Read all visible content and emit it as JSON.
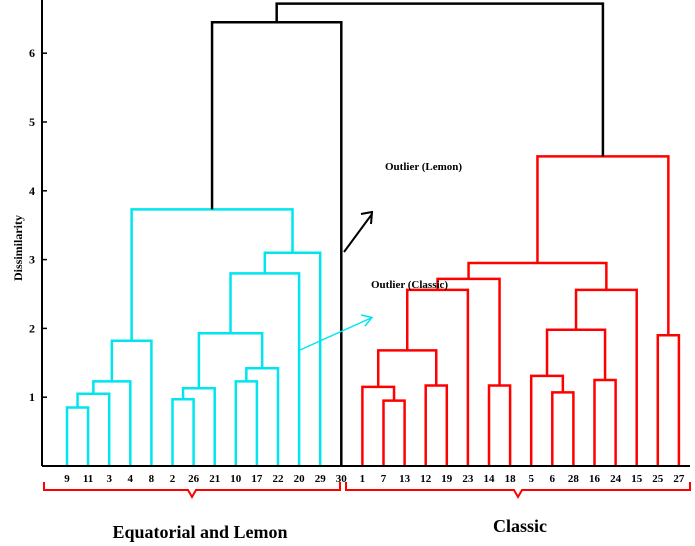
{
  "chart_data": {
    "type": "dendrogram",
    "ylabel": "Dissimilarity",
    "ylim": [
      0,
      7
    ],
    "yticks": [
      1,
      2,
      3,
      4,
      5,
      6,
      7
    ],
    "leaves": [
      "9",
      "11",
      "3",
      "4",
      "8",
      "2",
      "26",
      "21",
      "10",
      "17",
      "22",
      "20",
      "29",
      "30",
      "1",
      "7",
      "13",
      "12",
      "19",
      "23",
      "14",
      "18",
      "5",
      "6",
      "28",
      "16",
      "24",
      "15",
      "25",
      "27"
    ],
    "merges": [
      {
        "a": "L:9",
        "b": "L:11",
        "h": 0.85,
        "color": "#00e5ee"
      },
      {
        "a": "M:1",
        "b": "L:3",
        "h": 1.05,
        "color": "#00e5ee"
      },
      {
        "a": "M:2",
        "b": "L:4",
        "h": 1.23,
        "color": "#00e5ee"
      },
      {
        "a": "M:3",
        "b": "L:8",
        "h": 1.82,
        "color": "#00e5ee"
      },
      {
        "a": "L:2",
        "b": "L:26",
        "h": 0.97,
        "color": "#00e5ee"
      },
      {
        "a": "M:5",
        "b": "L:21",
        "h": 1.13,
        "color": "#00e5ee"
      },
      {
        "a": "L:10",
        "b": "L:17",
        "h": 1.23,
        "color": "#00e5ee"
      },
      {
        "a": "M:7",
        "b": "L:22",
        "h": 1.42,
        "color": "#00e5ee"
      },
      {
        "a": "M:6",
        "b": "M:8",
        "h": 1.93,
        "color": "#00e5ee"
      },
      {
        "a": "M:9",
        "b": "L:20",
        "h": 2.8,
        "color": "#00e5ee"
      },
      {
        "a": "M:10",
        "b": "L:29",
        "h": 3.1,
        "color": "#00e5ee"
      },
      {
        "a": "M:4",
        "b": "M:11",
        "h": 3.73,
        "color": "#00e5ee"
      },
      {
        "a": "M:12",
        "b": "L:30",
        "h": 6.45,
        "color": "#000000"
      },
      {
        "a": "L:7",
        "b": "L:13",
        "h": 0.95,
        "color": "#ff0000"
      },
      {
        "a": "L:1",
        "b": "M:14",
        "h": 1.15,
        "color": "#ff0000"
      },
      {
        "a": "L:12",
        "b": "L:19",
        "h": 1.17,
        "color": "#ff0000"
      },
      {
        "a": "M:15",
        "b": "M:16",
        "h": 1.68,
        "color": "#ff0000"
      },
      {
        "a": "M:17",
        "b": "L:23",
        "h": 2.56,
        "color": "#ff0000"
      },
      {
        "a": "L:14",
        "b": "L:18",
        "h": 1.17,
        "color": "#ff0000"
      },
      {
        "a": "M:18",
        "b": "M:19",
        "h": 2.72,
        "color": "#ff0000"
      },
      {
        "a": "L:6",
        "b": "L:28",
        "h": 1.07,
        "color": "#ff0000"
      },
      {
        "a": "L:5",
        "b": "M:21",
        "h": 1.31,
        "color": "#ff0000"
      },
      {
        "a": "L:16",
        "b": "L:24",
        "h": 1.25,
        "color": "#ff0000"
      },
      {
        "a": "M:22",
        "b": "M:23",
        "h": 1.98,
        "color": "#ff0000"
      },
      {
        "a": "M:24",
        "b": "L:15",
        "h": 2.56,
        "color": "#ff0000"
      },
      {
        "a": "M:20",
        "b": "M:25",
        "h": 2.95,
        "color": "#ff0000"
      },
      {
        "a": "L:25",
        "b": "L:27",
        "h": 1.9,
        "color": "#ff0000"
      },
      {
        "a": "M:26",
        "b": "M:27",
        "h": 4.5,
        "color": "#ff0000"
      },
      {
        "a": "M:13",
        "b": "M:28",
        "h": 6.72,
        "color": "#000000"
      }
    ],
    "annotations": [
      {
        "text": "Outlier (Lemon)"
      },
      {
        "text": "Outlier (Classic)"
      }
    ],
    "groups": [
      {
        "label": "Equatorial and Lemon",
        "first": "9",
        "last": "30"
      },
      {
        "label": "Classic",
        "first": "30",
        "last": "27"
      }
    ],
    "colors": {
      "cyan": "#00e5ee",
      "red": "#ff0000",
      "black": "#000000"
    }
  }
}
